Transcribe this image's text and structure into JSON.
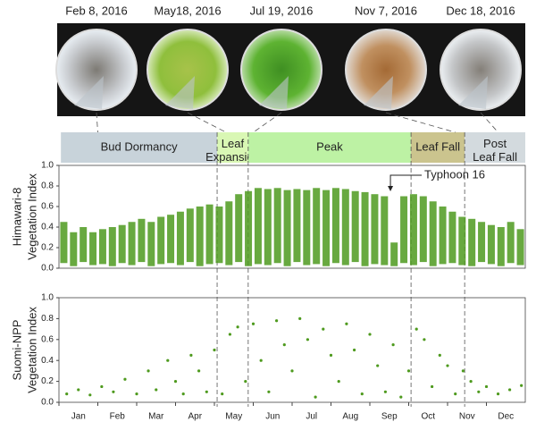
{
  "photos": [
    {
      "date": "Feb 8, 2016"
    },
    {
      "date": "May18, 2016"
    },
    {
      "date": "Jul 19, 2016"
    },
    {
      "date": "Nov 7, 2016"
    },
    {
      "date": "Dec 18, 2016"
    }
  ],
  "phases": [
    {
      "lines": [
        "Bud Dormancy"
      ],
      "start": 0.05,
      "end": 4.07,
      "color": "#c8d3da"
    },
    {
      "lines": [
        "Leaf",
        "Expansion"
      ],
      "start": 4.07,
      "end": 4.87,
      "color": "#d9f7b4"
    },
    {
      "lines": [
        "Peak"
      ],
      "start": 4.87,
      "end": 9.06,
      "color": "#bdf2a4"
    },
    {
      "lines": [
        "Leaf Fall"
      ],
      "start": 9.06,
      "end": 10.44,
      "color": "#cbc48e"
    },
    {
      "lines": [
        "Post",
        "Leaf Fall"
      ],
      "start": 10.44,
      "end": 12,
      "color": "#d3dade"
    }
  ],
  "chart_data": [
    {
      "type": "range",
      "ylabel_lines": [
        "Himawari-8",
        "Vegetation Index"
      ],
      "color": "#4e9a1e",
      "xlim": [
        0,
        12
      ],
      "ylim": [
        0,
        1
      ],
      "yticks": [
        {
          "value": 0,
          "label": "0.0"
        },
        0.2,
        0.4,
        0.6,
        0.8,
        {
          "value": 1,
          "label": "1.0"
        }
      ],
      "annotation": {
        "text": "Typhoon 16",
        "x": 8.53
      },
      "x": [
        0.125,
        0.375,
        0.625,
        0.875,
        1.125,
        1.375,
        1.625,
        1.875,
        2.125,
        2.375,
        2.625,
        2.875,
        3.125,
        3.375,
        3.625,
        3.875,
        4.125,
        4.375,
        4.625,
        4.875,
        5.125,
        5.375,
        5.625,
        5.875,
        6.125,
        6.375,
        6.625,
        6.875,
        7.125,
        7.375,
        7.625,
        7.875,
        8.125,
        8.375,
        8.625,
        8.875,
        9.125,
        9.375,
        9.625,
        9.875,
        10.125,
        10.375,
        10.625,
        10.875,
        11.125,
        11.375,
        11.625,
        11.875
      ],
      "low": [
        0.05,
        0.02,
        0.06,
        0.03,
        0.04,
        0.02,
        0.05,
        0.03,
        0.06,
        0.02,
        0.04,
        0.05,
        0.03,
        0.06,
        0.02,
        0.04,
        0.05,
        0.03,
        0.06,
        0.02,
        0.04,
        0.03,
        0.05,
        0.02,
        0.06,
        0.03,
        0.04,
        0.02,
        0.05,
        0.03,
        0.06,
        0.02,
        0.04,
        0.03,
        0.02,
        0.05,
        0.03,
        0.06,
        0.02,
        0.04,
        0.05,
        0.03,
        0.02,
        0.06,
        0.04,
        0.02,
        0.05,
        0.03
      ],
      "high": [
        0.45,
        0.35,
        0.4,
        0.35,
        0.38,
        0.4,
        0.42,
        0.45,
        0.48,
        0.45,
        0.5,
        0.52,
        0.55,
        0.58,
        0.6,
        0.62,
        0.6,
        0.65,
        0.72,
        0.75,
        0.78,
        0.77,
        0.78,
        0.76,
        0.77,
        0.76,
        0.78,
        0.76,
        0.78,
        0.77,
        0.75,
        0.74,
        0.72,
        0.7,
        0.25,
        0.7,
        0.72,
        0.7,
        0.65,
        0.6,
        0.55,
        0.5,
        0.48,
        0.45,
        0.42,
        0.4,
        0.45,
        0.38
      ]
    },
    {
      "type": "scatter",
      "ylabel_lines": [
        "Suomi-NPP",
        "Vegetation Index"
      ],
      "color": "#4e9a1e",
      "categories": [
        "Jan",
        "Feb",
        "Mar",
        "Apr",
        "May",
        "Jun",
        "Jul",
        "Aug",
        "Sep",
        "Oct",
        "Nov",
        "Dec"
      ],
      "xlim": [
        0,
        12
      ],
      "ylim": [
        0,
        1
      ],
      "yticks": [
        {
          "value": 0,
          "label": "0.0"
        },
        0.2,
        0.4,
        0.6,
        0.8,
        {
          "value": 1,
          "label": "1.0"
        }
      ],
      "x": [
        0.2,
        0.5,
        0.8,
        1.1,
        1.4,
        1.7,
        2.0,
        2.3,
        2.5,
        2.8,
        3.0,
        3.2,
        3.4,
        3.6,
        3.8,
        4.0,
        4.2,
        4.4,
        4.6,
        4.8,
        5.0,
        5.2,
        5.4,
        5.6,
        5.8,
        6.0,
        6.2,
        6.4,
        6.6,
        6.8,
        7.0,
        7.2,
        7.4,
        7.6,
        7.8,
        8.0,
        8.2,
        8.4,
        8.6,
        8.8,
        9.0,
        9.2,
        9.4,
        9.6,
        9.8,
        10.0,
        10.2,
        10.4,
        10.6,
        10.8,
        11.0,
        11.3,
        11.6,
        11.9
      ],
      "values": [
        0.08,
        0.12,
        0.07,
        0.15,
        0.1,
        0.22,
        0.08,
        0.3,
        0.12,
        0.4,
        0.2,
        0.08,
        0.45,
        0.3,
        0.1,
        0.5,
        0.08,
        0.65,
        0.72,
        0.2,
        0.75,
        0.4,
        0.1,
        0.78,
        0.55,
        0.3,
        0.8,
        0.6,
        0.05,
        0.7,
        0.45,
        0.2,
        0.75,
        0.5,
        0.08,
        0.65,
        0.35,
        0.1,
        0.55,
        0.05,
        0.3,
        0.7,
        0.6,
        0.15,
        0.45,
        0.35,
        0.08,
        0.3,
        0.2,
        0.1,
        0.15,
        0.08,
        0.12,
        0.16
      ]
    }
  ]
}
